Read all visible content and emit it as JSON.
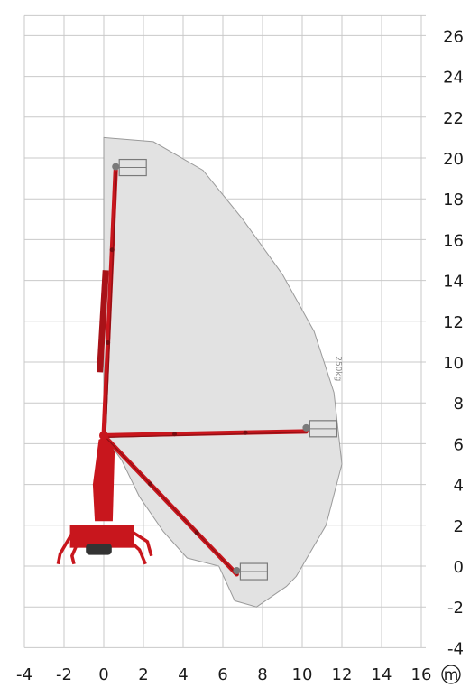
{
  "diagram": {
    "type": "working-range",
    "unit": "m",
    "load_label": "250kg",
    "x_ticks": [
      "-4",
      "-2",
      "0",
      "2",
      "4",
      "6",
      "8",
      "10",
      "12",
      "14",
      "16"
    ],
    "y_ticks": [
      "-4",
      "-2",
      "0",
      "2",
      "4",
      "6",
      "8",
      "10",
      "12",
      "14",
      "16",
      "18",
      "20",
      "22",
      "24",
      "26"
    ],
    "x_range": [
      -4,
      16
    ],
    "y_range": [
      -4,
      26
    ],
    "envelope_points": [
      [
        0,
        21
      ],
      [
        2.5,
        20.8
      ],
      [
        5,
        19.4
      ],
      [
        7,
        17
      ],
      [
        9,
        14.3
      ],
      [
        10.6,
        11.5
      ],
      [
        11.6,
        8.5
      ],
      [
        12,
        5
      ],
      [
        11.2,
        2
      ],
      [
        9.7,
        -0.5
      ],
      [
        9.2,
        -1
      ],
      [
        7.7,
        -2
      ],
      [
        6.6,
        -1.7
      ],
      [
        5.8,
        0
      ],
      [
        4.2,
        0.4
      ],
      [
        3,
        1.7
      ],
      [
        1.8,
        3.4
      ],
      [
        0.9,
        5.2
      ],
      [
        0,
        6.4
      ]
    ],
    "pivot": [
      0,
      6.4
    ],
    "boom_positions": [
      {
        "name": "max-height",
        "tip": [
          0.6,
          19.4
        ]
      },
      {
        "name": "max-outreach",
        "tip": [
          10.2,
          6.6
        ]
      },
      {
        "name": "low-reach",
        "tip": [
          6.7,
          -0.4
        ]
      }
    ],
    "colors": {
      "boom": "#c8161d",
      "envelope_fill": "#e2e2e2",
      "envelope_stroke": "#9a9a9a",
      "grid": "#c9c9c9",
      "text": "#1a1a1a",
      "basket": "#7a7a7a"
    }
  }
}
